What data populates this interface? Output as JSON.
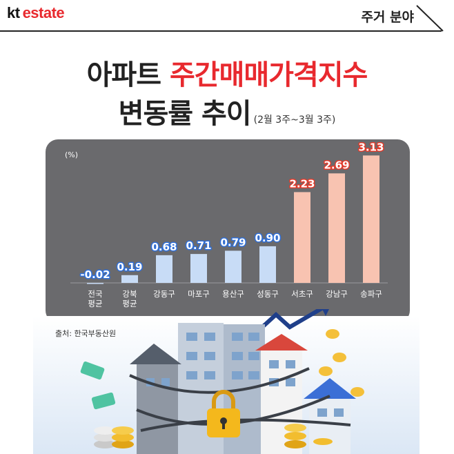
{
  "brand": {
    "kt": "kt",
    "estate": "estate"
  },
  "category": "주거 분야",
  "title": {
    "line1_a": "아파트 ",
    "line1_b": "주간매매가격지수",
    "line2": "변동률 추이",
    "period": "(2월 3주~3월 3주)"
  },
  "source": "출처: 한국부동산원",
  "colors": {
    "brand_red": "#e8292e",
    "panel": "#6a6a6d",
    "bar_blue": "#c8dcf6",
    "bar_pink": "#f8c3b1",
    "label_blue": "#2f6fd8",
    "label_red": "#e23a2a"
  },
  "chart_data": {
    "type": "bar",
    "unit_label": "(%)",
    "categories": [
      [
        "전국",
        "평균"
      ],
      [
        "강북",
        "평균"
      ],
      [
        "강동구"
      ],
      [
        "마포구"
      ],
      [
        "용산구"
      ],
      [
        "성동구"
      ],
      [
        "서초구"
      ],
      [
        "강남구"
      ],
      [
        "송파구"
      ]
    ],
    "values": [
      -0.02,
      0.19,
      0.68,
      0.71,
      0.79,
      0.9,
      2.23,
      2.69,
      3.13
    ],
    "value_labels": [
      "-0.02",
      "0.19",
      "0.68",
      "0.71",
      "0.79",
      "0.90",
      "2.23",
      "2.69",
      "3.13"
    ],
    "highlight": [
      false,
      false,
      false,
      false,
      false,
      false,
      true,
      true,
      true
    ],
    "ylim": [
      -0.1,
      3.2
    ],
    "grid": false
  }
}
